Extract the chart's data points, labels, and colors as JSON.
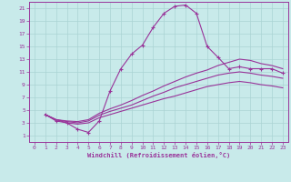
{
  "xlabel": "Windchill (Refroidissement éolien,°C)",
  "background_color": "#c8eaea",
  "line_color": "#993399",
  "grid_color": "#aad4d4",
  "xlim": [
    -0.5,
    23.5
  ],
  "ylim": [
    0,
    22
  ],
  "xticks": [
    0,
    1,
    2,
    3,
    4,
    5,
    6,
    7,
    8,
    9,
    10,
    11,
    12,
    13,
    14,
    15,
    16,
    17,
    18,
    19,
    20,
    21,
    22,
    23
  ],
  "yticks": [
    1,
    3,
    5,
    7,
    9,
    11,
    13,
    15,
    17,
    19,
    21
  ],
  "curves": [
    {
      "x": [
        1,
        2,
        3,
        4,
        5,
        6,
        7,
        8,
        9,
        10,
        11,
        12,
        13,
        14,
        15,
        16,
        17,
        18,
        19,
        20,
        21,
        22,
        23
      ],
      "y": [
        4.3,
        3.3,
        3.0,
        2.0,
        1.5,
        3.3,
        8.0,
        11.5,
        13.8,
        15.2,
        18.0,
        20.2,
        21.3,
        21.5,
        20.2,
        15.0,
        13.3,
        11.5,
        11.8,
        11.5,
        11.5,
        11.5,
        10.8
      ],
      "marker": "+"
    },
    {
      "x": [
        1,
        2,
        3,
        4,
        5,
        6,
        7,
        8,
        9,
        10,
        11,
        12,
        13,
        14,
        15,
        16,
        17,
        18,
        19,
        20,
        21,
        22,
        23
      ],
      "y": [
        4.3,
        3.5,
        3.3,
        3.2,
        3.5,
        4.5,
        5.2,
        5.8,
        6.5,
        7.3,
        8.0,
        8.8,
        9.5,
        10.2,
        10.8,
        11.3,
        12.0,
        12.5,
        13.0,
        12.8,
        12.3,
        12.0,
        11.5
      ],
      "marker": null
    },
    {
      "x": [
        1,
        2,
        3,
        4,
        5,
        6,
        7,
        8,
        9,
        10,
        11,
        12,
        13,
        14,
        15,
        16,
        17,
        18,
        19,
        20,
        21,
        22,
        23
      ],
      "y": [
        4.3,
        3.5,
        3.2,
        3.0,
        3.3,
        4.2,
        4.8,
        5.3,
        5.8,
        6.5,
        7.2,
        7.8,
        8.5,
        9.0,
        9.5,
        10.0,
        10.5,
        10.8,
        11.0,
        10.8,
        10.5,
        10.3,
        10.0
      ],
      "marker": null
    },
    {
      "x": [
        1,
        2,
        3,
        4,
        5,
        6,
        7,
        8,
        9,
        10,
        11,
        12,
        13,
        14,
        15,
        16,
        17,
        18,
        19,
        20,
        21,
        22,
        23
      ],
      "y": [
        4.3,
        3.5,
        3.0,
        2.8,
        3.0,
        3.8,
        4.3,
        4.8,
        5.3,
        5.8,
        6.3,
        6.8,
        7.2,
        7.7,
        8.2,
        8.7,
        9.0,
        9.3,
        9.5,
        9.3,
        9.0,
        8.8,
        8.5
      ],
      "marker": null
    }
  ]
}
